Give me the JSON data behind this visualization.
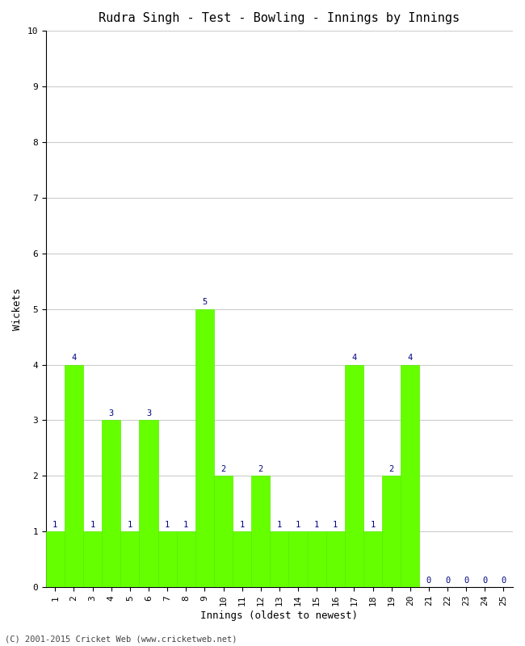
{
  "title": "Rudra Singh - Test - Bowling - Innings by Innings",
  "xlabel": "Innings (oldest to newest)",
  "ylabel": "Wickets",
  "innings": [
    1,
    2,
    3,
    4,
    5,
    6,
    7,
    8,
    9,
    10,
    11,
    12,
    13,
    14,
    15,
    16,
    17,
    18,
    19,
    20,
    21,
    22,
    23,
    24,
    25
  ],
  "wickets": [
    1,
    4,
    1,
    3,
    1,
    3,
    1,
    1,
    5,
    2,
    1,
    2,
    1,
    1,
    1,
    1,
    4,
    1,
    2,
    4,
    0,
    0,
    0,
    0,
    0
  ],
  "bar_color": "#66ff00",
  "bar_edge_color": "#55ee00",
  "label_color": "#000080",
  "ylim": [
    0,
    10
  ],
  "yticks": [
    0,
    1,
    2,
    3,
    4,
    5,
    6,
    7,
    8,
    9,
    10
  ],
  "grid_color": "#cccccc",
  "background_color": "#ffffff",
  "footer": "(C) 2001-2015 Cricket Web (www.cricketweb.net)",
  "title_fontsize": 11,
  "label_fontsize": 9,
  "tick_fontsize": 8,
  "annotation_fontsize": 7.5,
  "footer_fontsize": 7.5
}
